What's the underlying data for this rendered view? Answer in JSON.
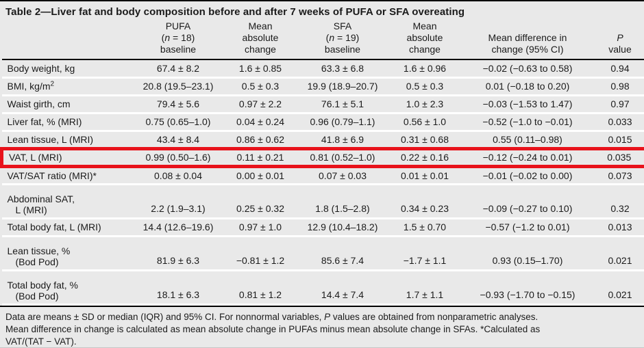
{
  "title": "Table 2—Liver fat and body composition before and after 7 weeks of PUFA or SFA overeating",
  "colors": {
    "highlight_box": "#e8121b",
    "row_background": "#e9e9e9",
    "row_separator": "#ffffff",
    "rule": "#000000"
  },
  "columns": [
    {
      "name": "row-label",
      "lines": []
    },
    {
      "name": "pufa-baseline",
      "lines": [
        "PUFA",
        "({i}n{/i} = 18)",
        "baseline"
      ]
    },
    {
      "name": "pufa-mean-absolute-change",
      "lines": [
        "Mean",
        "absolute",
        "change"
      ]
    },
    {
      "name": "sfa-baseline",
      "lines": [
        "SFA",
        "({i}n{/i} = 19)",
        "baseline"
      ]
    },
    {
      "name": "sfa-mean-absolute-change",
      "lines": [
        "Mean",
        "absolute",
        "change"
      ]
    },
    {
      "name": "mean-difference",
      "lines": [
        "Mean difference in",
        "change (95% CI)"
      ]
    },
    {
      "name": "p-value",
      "lines": [
        "{i}P{/i}",
        "value"
      ]
    }
  ],
  "rows": [
    {
      "label_lines": [
        "Body weight, kg"
      ],
      "cells": [
        "67.4 ± 8.2",
        "1.6 ± 0.85",
        "63.3 ± 6.8",
        "1.6 ± 0.96",
        "−0.02 (−0.63 to 0.58)",
        "0.94"
      ],
      "highlight": false
    },
    {
      "label_lines": [
        "BMI, kg/m{sup}2{/sup}"
      ],
      "cells": [
        "20.8 (19.5–23.1)",
        "0.5 ± 0.3",
        "19.9 (18.9–20.7)",
        "0.5 ± 0.3",
        "0.01 (−0.18 to 0.20)",
        "0.98"
      ],
      "highlight": false
    },
    {
      "label_lines": [
        "Waist girth, cm"
      ],
      "cells": [
        "79.4 ± 5.6",
        "0.97 ± 2.2",
        "76.1 ± 5.1",
        "1.0 ± 2.3",
        "−0.03 (−1.53 to 1.47)",
        "0.97"
      ],
      "highlight": false
    },
    {
      "label_lines": [
        "Liver fat, % (MRI)"
      ],
      "cells": [
        "0.75 (0.65–1.0)",
        "0.04 ± 0.24",
        "0.96 (0.79–1.1)",
        "0.56 ± 1.0",
        "−0.52 (−1.0 to −0.01)",
        "0.033"
      ],
      "highlight": false
    },
    {
      "label_lines": [
        "Lean tissue, L (MRI)"
      ],
      "cells": [
        "43.4 ± 8.4",
        "0.86 ± 0.62",
        "41.8 ± 6.9",
        "0.31 ± 0.68",
        "0.55 (0.11–0.98)",
        "0.015"
      ],
      "highlight": false
    },
    {
      "label_lines": [
        "VAT, L (MRI)"
      ],
      "cells": [
        "0.99 (0.50–1.6)",
        "0.11 ± 0.21",
        "0.81 (0.52–1.0)",
        "0.22 ± 0.16",
        "−0.12 (−0.24 to 0.01)",
        "0.035"
      ],
      "highlight": true
    },
    {
      "label_lines": [
        "VAT/SAT ratio (MRI)*"
      ],
      "cells": [
        "0.08 ± 0.04",
        "0.00 ± 0.01",
        "0.07 ± 0.03",
        "0.01 ± 0.01",
        "−0.01 (−0.02 to 0.00)",
        "0.073"
      ],
      "highlight": false
    },
    {
      "label_lines": [
        "Abdominal SAT,",
        "L (MRI)"
      ],
      "cells": [
        "2.2 (1.9–3.1)",
        "0.25 ± 0.32",
        "1.8 (1.5–2.8)",
        "0.34 ± 0.23",
        "−0.09 (−0.27 to 0.10)",
        "0.32"
      ],
      "highlight": false
    },
    {
      "label_lines": [
        "Total body fat, L (MRI)"
      ],
      "cells": [
        "14.4 (12.6–19.6)",
        "0.97 ± 1.0",
        "12.9 (10.4–18.2)",
        "1.5 ± 0.70",
        "−0.57 (−1.2 to 0.01)",
        "0.013"
      ],
      "highlight": false
    },
    {
      "label_lines": [
        "Lean tissue, %",
        "(Bod Pod)"
      ],
      "cells": [
        "81.9 ± 6.3",
        "−0.81 ± 1.2",
        "85.6 ± 7.4",
        "−1.7 ± 1.1",
        "0.93 (0.15–1.70)",
        "0.021"
      ],
      "highlight": false
    },
    {
      "label_lines": [
        "Total body fat, %",
        "(Bod Pod)"
      ],
      "cells": [
        "18.1 ± 6.3",
        "0.81 ± 1.2",
        "14.4 ± 7.4",
        "1.7 ± 1.1",
        "−0.93 (−1.70 to −0.15)",
        "0.021"
      ],
      "highlight": false
    }
  ],
  "footnote": {
    "lines": [
      "Data are means ± SD or median (IQR) and 95% CI. For nonnormal variables, {i}P{/i} values are obtained from nonparametric analyses.",
      "Mean difference in change is calculated as mean absolute change in PUFAs minus mean absolute change in SFAs. *Calculated as",
      "VAT/(TAT − VAT)."
    ]
  }
}
